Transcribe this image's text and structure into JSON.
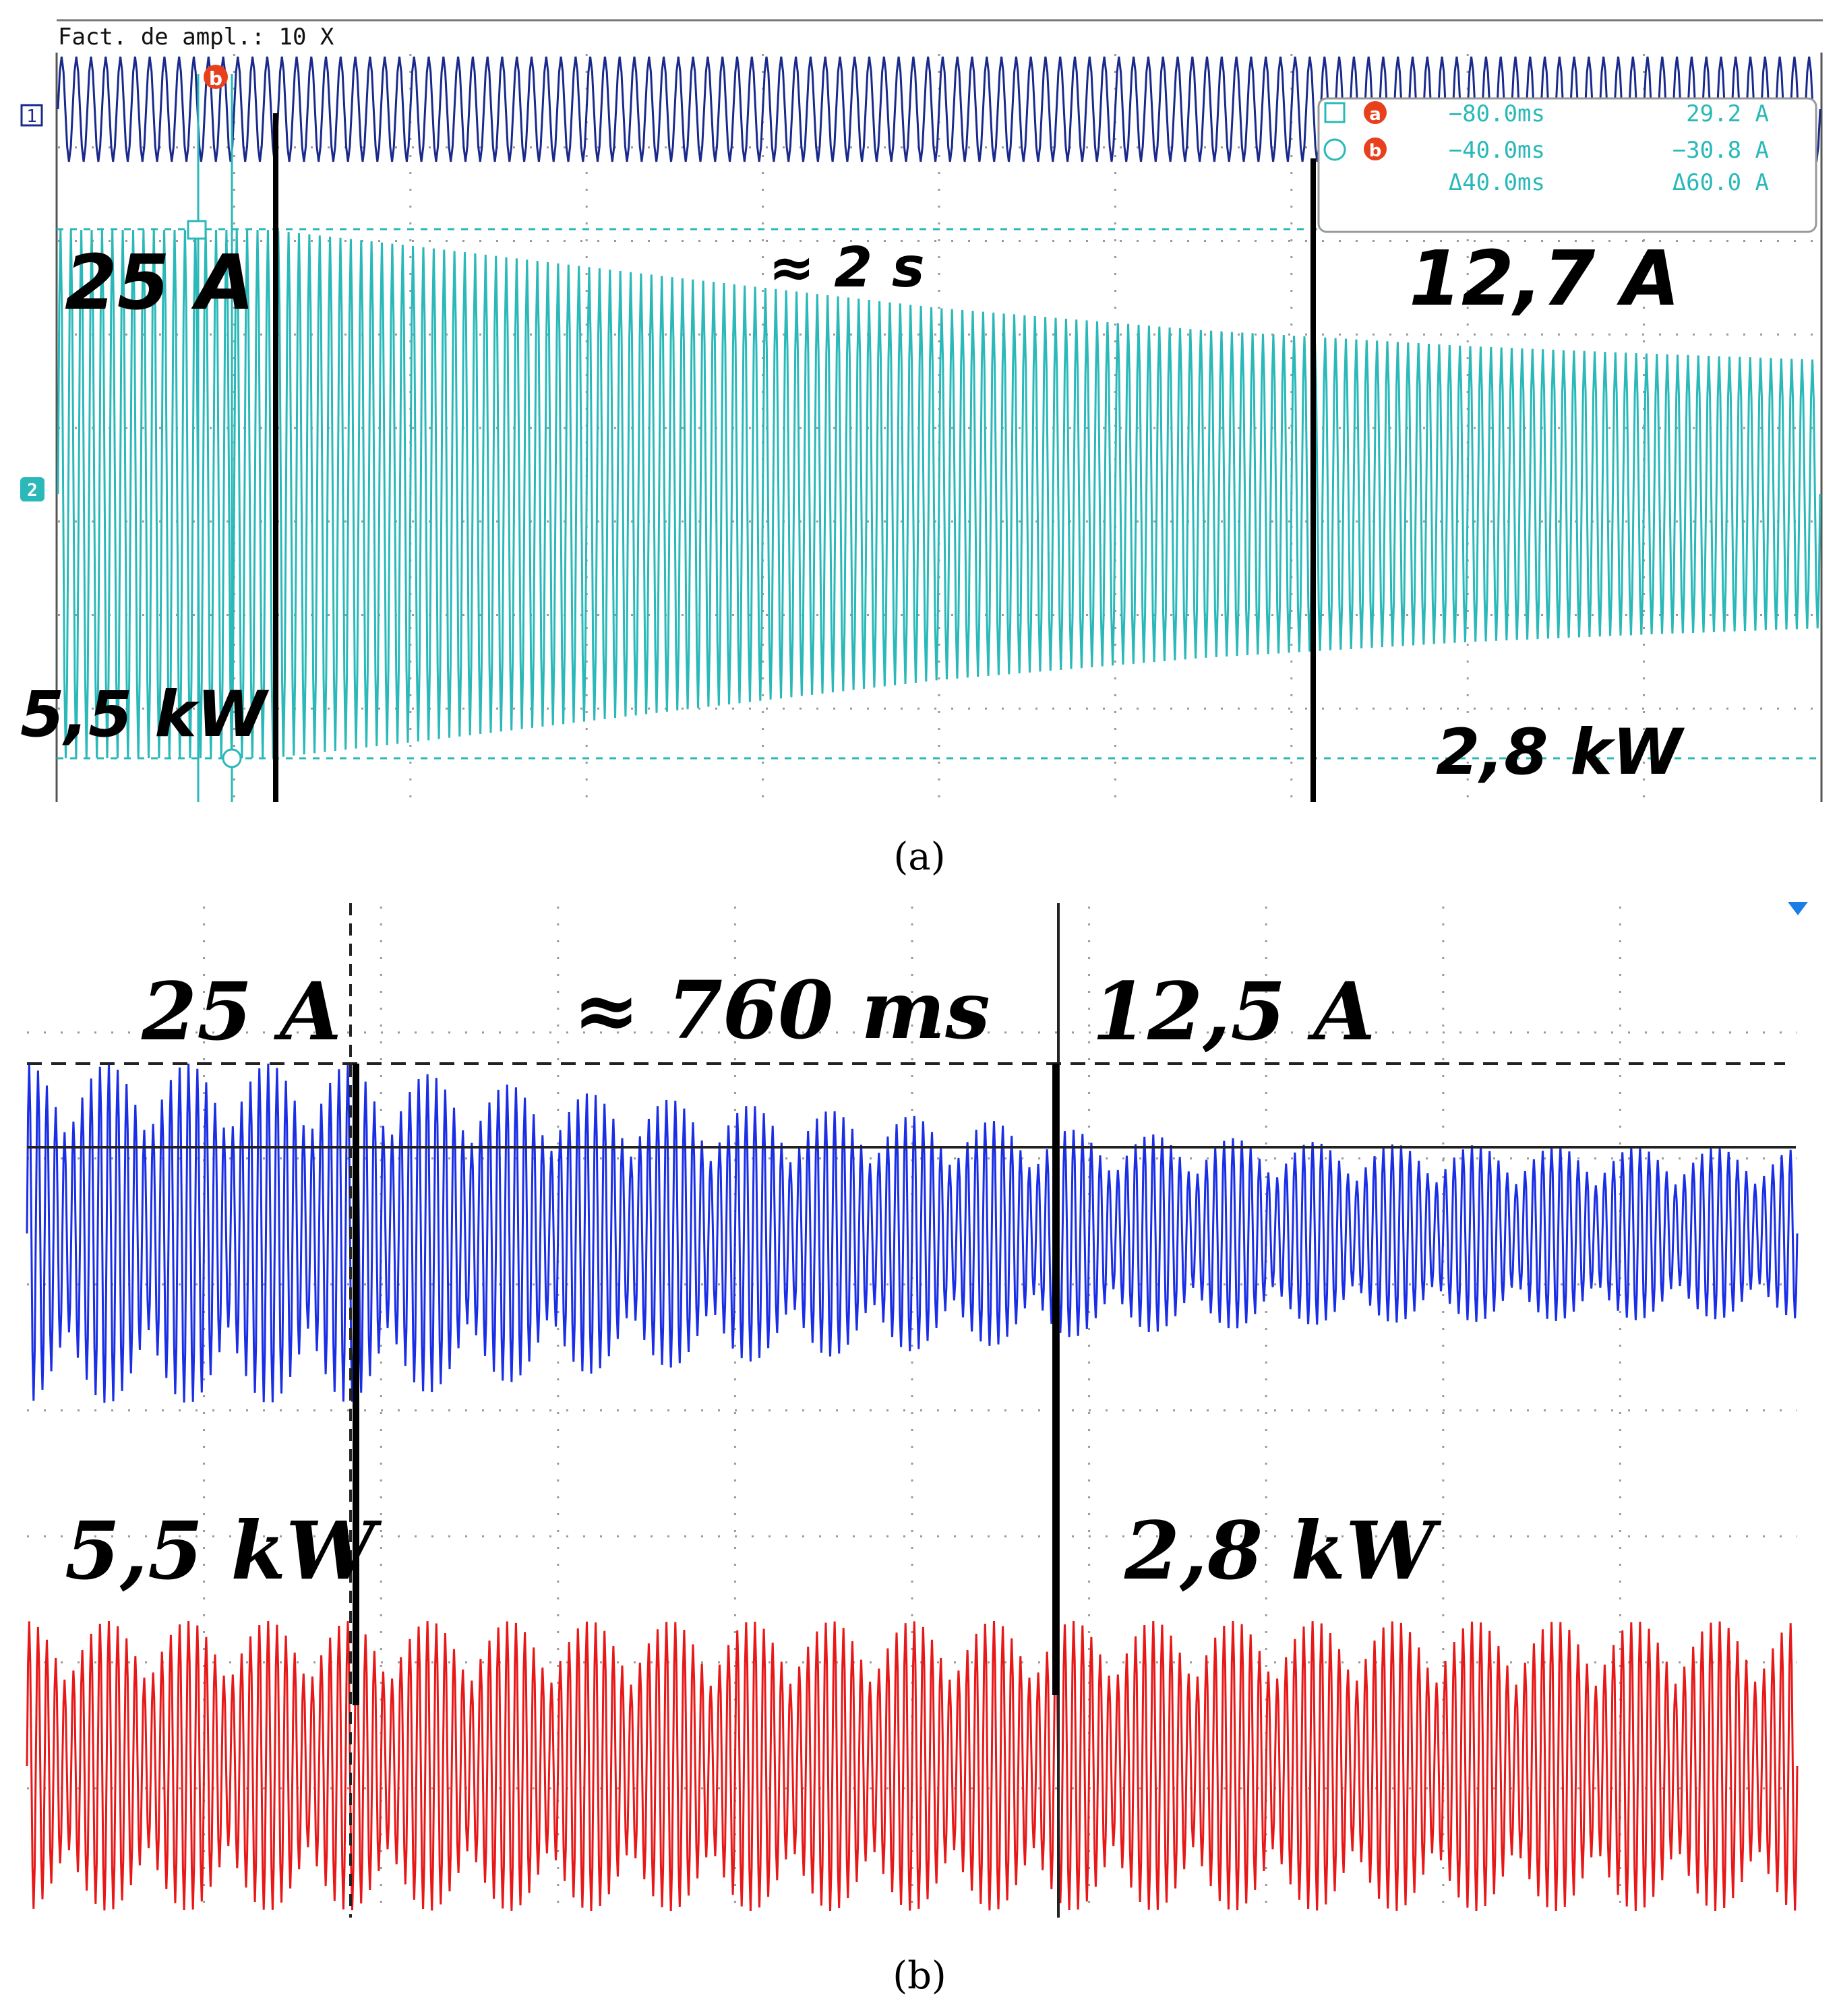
{
  "chart_data": [
    {
      "panel": "(a)",
      "type": "line",
      "header": "Fact. de ampl.: 10 X",
      "channel_markers": [
        "1",
        "2"
      ],
      "cursor_labels": [
        "a",
        "b"
      ],
      "readout": {
        "rows": [
          {
            "marker": "a",
            "shape": "square",
            "time": "−80.0ms",
            "value": "29.2 A"
          },
          {
            "marker": "b",
            "shape": "circle",
            "time": "−40.0ms",
            "value": "−30.8 A"
          },
          {
            "marker": "",
            "shape": "",
            "time": "Δ40.0ms",
            "value": "Δ60.0 A"
          }
        ]
      },
      "annotations": {
        "start_current": "25 A",
        "duration": "≈ 2 s",
        "end_current": "12,7 A",
        "start_power": "5,5 kW",
        "end_power": "2,8 kW"
      },
      "series": [
        {
          "channel": "1",
          "color": "#1a2a8c",
          "waveform": "sinusoid",
          "amplitude_divisions": 0.6,
          "cycles": 120
        },
        {
          "channel": "2",
          "color": "#2ab8b8",
          "waveform": "sinusoid",
          "cycles": 170,
          "envelope_peak_A": [
            [
              0,
              25
            ],
            [
              0.12,
              25
            ],
            [
              0.2,
              23.5
            ],
            [
              0.35,
              20.5
            ],
            [
              0.5,
              17.6
            ],
            [
              0.65,
              15.5
            ],
            [
              0.8,
              14.0
            ],
            [
              0.9,
              13.3
            ],
            [
              1.0,
              12.7
            ]
          ]
        }
      ],
      "grid": {
        "x_divisions": 10,
        "y_divisions": 8,
        "dotted": true
      },
      "colors": {
        "ch1": "#1a2a8c",
        "ch2": "#2ab8b8",
        "cursor": "#2ab8b8",
        "marker": "#e8401c"
      }
    },
    {
      "panel": "(b)",
      "type": "line",
      "annotations": {
        "start_current": "25 A",
        "duration": "≈ 760 ms",
        "end_current": "12,5 A",
        "start_power": "5,5 kW",
        "end_power": "2,8 kW"
      },
      "series": [
        {
          "color": "#1a2ee6",
          "waveform": "beating sinusoid",
          "cycles": 200,
          "envelope_peak_A": [
            [
              0,
              25
            ],
            [
              0.18,
              25
            ],
            [
              0.3,
              21
            ],
            [
              0.4,
              19
            ],
            [
              0.55,
              16.5
            ],
            [
              0.6,
              15
            ],
            [
              0.75,
              13.2
            ],
            [
              1.0,
              12.5
            ]
          ]
        },
        {
          "color": "#e81818",
          "waveform": "beating sinusoid",
          "cycles": 200,
          "envelope": "constant"
        }
      ],
      "grid": {
        "x_divisions": 10,
        "y_divisions": 8,
        "dotted": true
      },
      "colors": {
        "current": "#1a2ee6",
        "power": "#e81818"
      }
    }
  ],
  "captions": {
    "a": "(a)",
    "b": "(b)"
  }
}
